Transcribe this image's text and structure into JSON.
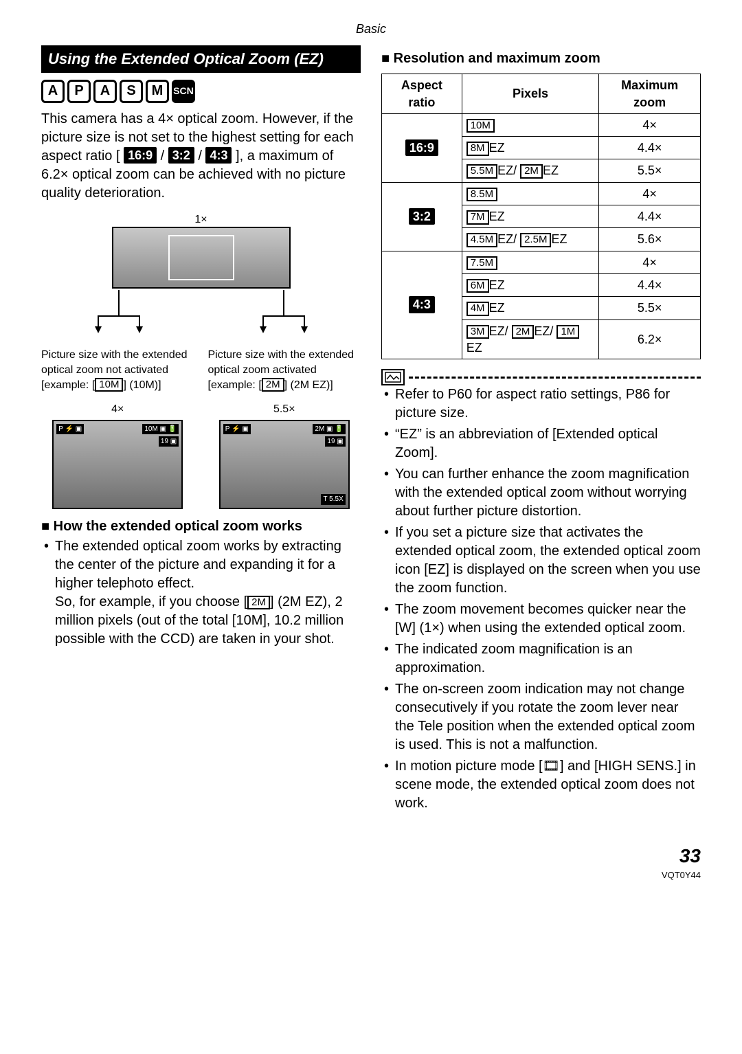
{
  "header": "Basic",
  "left": {
    "section_title": "Using the Extended Optical Zoom (EZ)",
    "modes": [
      "A",
      "P",
      "A",
      "S",
      "M",
      "SCN"
    ],
    "intro_1": "This camera has a 4× optical zoom. However, if the picture size is not set to the highest setting for each aspect ratio [",
    "ratio_chips": [
      "16:9",
      "3:2",
      "4:3"
    ],
    "intro_2": "], a maximum of 6.2× optical zoom can be achieved with no picture quality deterioration.",
    "diagram_top_label": "1×",
    "caption_left": "Picture size with the extended optical zoom not activated [example: [",
    "caption_left_box": "10M",
    "caption_left_tail": "] (10M)]",
    "caption_right": "Picture size with the extended optical zoom activated [example: [",
    "caption_right_box": "2M",
    "caption_right_tail": "] (2M EZ)]",
    "thumb_left_label": "4×",
    "thumb_right_label": "5.5×",
    "howworks_head": "How the extended optical zoom works",
    "howworks_b1": "The extended optical zoom works by extracting the center of the picture and expanding it for a higher telephoto effect.",
    "howworks_b2a": "So, for example, if you choose [",
    "howworks_b2_box": "2M",
    "howworks_b2b": "] (2M EZ), 2 million pixels (out of the total [10M], 10.2 million possible with the CCD) are taken in your shot."
  },
  "right": {
    "table_head": "Resolution and maximum zoom",
    "cols": [
      "Aspect ratio",
      "Pixels",
      "Maximum zoom"
    ],
    "rows": [
      {
        "aspect": "16:9",
        "pixels": [
          {
            "parts": [
              {
                "box": "10M"
              }
            ]
          },
          {
            "parts": [
              {
                "box": "8M"
              },
              {
                "txt": "EZ"
              }
            ]
          },
          {
            "parts": [
              {
                "box": "5.5M"
              },
              {
                "txt": "EZ/ "
              },
              {
                "box": "2M"
              },
              {
                "txt": "EZ"
              }
            ]
          }
        ],
        "zoom": [
          "4×",
          "4.4×",
          "5.5×"
        ]
      },
      {
        "aspect": "3:2",
        "pixels": [
          {
            "parts": [
              {
                "box": "8.5M"
              }
            ]
          },
          {
            "parts": [
              {
                "box": "7M"
              },
              {
                "txt": "EZ"
              }
            ]
          },
          {
            "parts": [
              {
                "box": "4.5M"
              },
              {
                "txt": "EZ/ "
              },
              {
                "box": "2.5M"
              },
              {
                "txt": "EZ"
              }
            ]
          }
        ],
        "zoom": [
          "4×",
          "4.4×",
          "5.6×"
        ]
      },
      {
        "aspect": "4:3",
        "pixels": [
          {
            "parts": [
              {
                "box": "7.5M"
              }
            ]
          },
          {
            "parts": [
              {
                "box": "6M"
              },
              {
                "txt": "EZ"
              }
            ]
          },
          {
            "parts": [
              {
                "box": "4M"
              },
              {
                "txt": "EZ"
              }
            ]
          },
          {
            "parts": [
              {
                "box": "3M"
              },
              {
                "txt": "EZ/ "
              },
              {
                "box": "2M"
              },
              {
                "txt": "EZ/ "
              },
              {
                "box": "1M"
              },
              {
                "txt": "EZ"
              }
            ]
          }
        ],
        "zoom": [
          "4×",
          "4.4×",
          "5.5×",
          "6.2×"
        ]
      }
    ],
    "notes": [
      "Refer to P60 for aspect ratio settings, P86 for picture size.",
      "“EZ” is an abbreviation of [Extended optical Zoom].",
      "You can further enhance the zoom magnification with the extended optical zoom without worrying about further picture distortion.",
      "If you set a picture size that activates the extended optical zoom, the extended optical zoom icon [EZ] is displayed on the screen when you use the zoom function.",
      "The zoom movement becomes quicker near the [W] (1×) when using the extended optical zoom.",
      "The indicated zoom magnification is an approximation.",
      "The on-screen zoom indication may not change consecutively if you rotate the zoom lever near the Tele position when the extended optical zoom is used. This is not a malfunction.",
      "In motion picture mode [🎞] and [HIGH SENS.] in scene mode, the extended optical zoom does not work."
    ]
  },
  "page_number": "33",
  "doc_code": "VQT0Y44"
}
